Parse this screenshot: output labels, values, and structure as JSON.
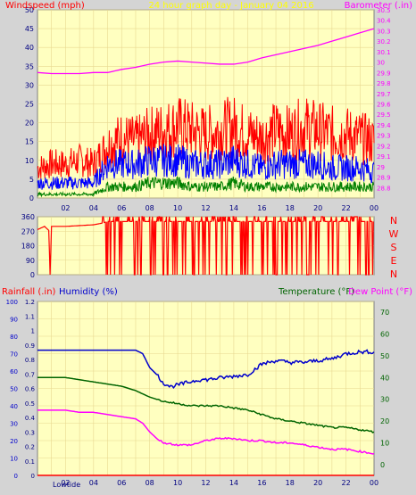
{
  "colors": {
    "background": "#d4d4d4",
    "plot_bg": "#ffffc0",
    "grid": "#e8d890",
    "windspeed": "#ff0000",
    "wind_mid": "#0000ff",
    "wind_low": "#008000",
    "barometer": "#ff00ff",
    "rainfall": "#ff0000",
    "humidity": "#0000cc",
    "temperature": "#006400",
    "dewpoint": "#ff00ff",
    "title": "#ffff00",
    "axis_text": "#000080"
  },
  "chart_data": [
    {
      "type": "line",
      "title": "24 hour graph day - January 04 2016",
      "left_label": "Windspeed (mph)",
      "right_label": "Barometer (.in)",
      "ylim_left": [
        0,
        50
      ],
      "ylim_right": [
        28.7,
        30.5
      ],
      "yticks_left": [
        "0",
        "5",
        "10",
        "15",
        "20",
        "25",
        "30",
        "35",
        "40",
        "45",
        "50"
      ],
      "yticks_right": [
        "28.8",
        "28.9",
        "29",
        "29.1",
        "29.2",
        "29.3",
        "29.4",
        "29.5",
        "29.6",
        "29.7",
        "29.8",
        "29.9",
        "30",
        "30.1",
        "30.2",
        "30.3",
        "30.4",
        "30.5"
      ],
      "xticks": [
        "02",
        "04",
        "06",
        "08",
        "10",
        "12",
        "14",
        "16",
        "18",
        "20",
        "22",
        "00"
      ],
      "grid": true,
      "series": [
        {
          "name": "Barometer (.in)",
          "axis": "right",
          "x": [
            0,
            1,
            2,
            3,
            4,
            5,
            6,
            7,
            8,
            9,
            10,
            11,
            12,
            13,
            14,
            15,
            16,
            17,
            18,
            19,
            20,
            21,
            22,
            23,
            24
          ],
          "values": [
            29.9,
            29.89,
            29.89,
            29.89,
            29.9,
            29.9,
            29.93,
            29.95,
            29.98,
            30.0,
            30.01,
            30.0,
            29.99,
            29.98,
            29.98,
            30.0,
            30.04,
            30.07,
            30.1,
            30.13,
            30.16,
            30.2,
            30.24,
            30.28,
            30.32
          ]
        },
        {
          "name": "Wind gust",
          "axis": "left",
          "x": [
            0,
            1,
            2,
            3,
            4,
            5,
            6,
            7,
            8,
            9,
            10,
            11,
            12,
            13,
            14,
            15,
            16,
            17,
            18,
            19,
            20,
            21,
            22,
            23,
            24
          ],
          "values": [
            8,
            9,
            9,
            10,
            9,
            14,
            16,
            15,
            17,
            18,
            19,
            18,
            17,
            18,
            19,
            17,
            16,
            18,
            17,
            19,
            18,
            17,
            17,
            16,
            15
          ]
        },
        {
          "name": "Wind average",
          "axis": "left",
          "x": [
            0,
            1,
            2,
            3,
            4,
            5,
            6,
            7,
            8,
            9,
            10,
            11,
            12,
            13,
            14,
            15,
            16,
            17,
            18,
            19,
            20,
            21,
            22,
            23,
            24
          ],
          "values": [
            4,
            4,
            4,
            4,
            4,
            9,
            9,
            9,
            10,
            10,
            10,
            9,
            9,
            9,
            10,
            9,
            8,
            9,
            9,
            9,
            9,
            8,
            8,
            8,
            7
          ]
        },
        {
          "name": "Wind low",
          "axis": "left",
          "x": [
            0,
            1,
            2,
            3,
            4,
            5,
            6,
            7,
            8,
            9,
            10,
            11,
            12,
            13,
            14,
            15,
            16,
            17,
            18,
            19,
            20,
            21,
            22,
            23,
            24
          ],
          "values": [
            1,
            1,
            1,
            1,
            1,
            3,
            3,
            3,
            4,
            4,
            4,
            3,
            3,
            3,
            4,
            3,
            3,
            3,
            3,
            3,
            3,
            3,
            3,
            3,
            3
          ]
        }
      ]
    },
    {
      "type": "line",
      "title": "",
      "right_label": "N W S E N",
      "right_letters": [
        "N",
        "W",
        "S",
        "E",
        "N"
      ],
      "ylim": [
        0,
        360
      ],
      "yticks": [
        "0",
        "90",
        "180",
        "270",
        "360"
      ],
      "grid": true,
      "series": [
        {
          "name": "Wind direction",
          "x": [
            0,
            0.5,
            0.8,
            0.9,
            1,
            2,
            3,
            4,
            4.6,
            5,
            6,
            7,
            8,
            9,
            10,
            11,
            12,
            13,
            14,
            15,
            16,
            17,
            18,
            19,
            20,
            21,
            22,
            23,
            24
          ],
          "values": [
            280,
            300,
            275,
            0,
            300,
            300,
            305,
            310,
            320,
            330,
            330,
            330,
            330,
            330,
            330,
            330,
            330,
            330,
            330,
            330,
            330,
            330,
            330,
            330,
            330,
            330,
            330,
            330,
            330
          ]
        }
      ]
    },
    {
      "type": "line",
      "title": "",
      "labels": [
        "Rainfall (.in)",
        "Humidity (%)",
        "Temperature (°F)",
        "Dew Point (°F)"
      ],
      "ylim_rain": [
        0,
        1.2
      ],
      "ylim_humidity": [
        0,
        100
      ],
      "ylim_temp": [
        -5,
        75
      ],
      "yticks_rain": [
        "0",
        "0.1",
        "0.2",
        "0.3",
        "0.4",
        "0.5",
        "0.6",
        "0.7",
        "0.8",
        "0.9",
        "1",
        "1.1",
        "1.2"
      ],
      "yticks_humidity": [
        "0",
        "10",
        "20",
        "30",
        "40",
        "50",
        "60",
        "70",
        "80",
        "90",
        "100"
      ],
      "yticks_temp": [
        "0",
        "10",
        "20",
        "30",
        "40",
        "50",
        "60",
        "70"
      ],
      "xticks": [
        "02",
        "04",
        "06",
        "08",
        "10",
        "12",
        "14",
        "16",
        "18",
        "20",
        "22",
        "00"
      ],
      "lowtide_label": "Lowtide",
      "grid": true,
      "series": [
        {
          "name": "Humidity (%)",
          "axis": "humidity",
          "x": [
            0,
            1,
            2,
            3,
            4,
            5,
            6,
            7,
            7.5,
            8,
            8.5,
            9,
            9.5,
            10,
            10.5,
            11,
            11.5,
            12,
            13,
            14,
            15,
            16,
            17,
            18,
            19,
            20,
            21,
            22,
            23,
            24
          ],
          "values": [
            72,
            72,
            72,
            72,
            72,
            72,
            72,
            72,
            70,
            62,
            58,
            53,
            51,
            52,
            53,
            54,
            55,
            55,
            56,
            57,
            58,
            64,
            66,
            65,
            65,
            66,
            67,
            70,
            71,
            71
          ]
        },
        {
          "name": "Temperature (°F)",
          "axis": "temp",
          "x": [
            0,
            1,
            2,
            3,
            4,
            5,
            6,
            7,
            8,
            9,
            10,
            11,
            12,
            13,
            14,
            15,
            16,
            17,
            18,
            19,
            20,
            21,
            22,
            23,
            24
          ],
          "values": [
            40,
            40,
            40,
            39,
            38,
            37,
            36,
            34,
            31,
            29,
            28,
            27,
            27,
            27,
            26,
            25,
            23,
            21,
            20,
            19,
            18,
            17,
            17,
            16,
            15
          ]
        },
        {
          "name": "Dew Point (°F)",
          "axis": "temp",
          "x": [
            0,
            1,
            2,
            3,
            4,
            5,
            6,
            7,
            7.5,
            8,
            8.5,
            9,
            10,
            11,
            12,
            13,
            14,
            15,
            16,
            17,
            18,
            19,
            20,
            21,
            22,
            23,
            24
          ],
          "values": [
            25,
            25,
            25,
            24,
            24,
            23,
            22,
            21,
            19,
            15,
            12,
            10,
            9,
            9,
            11,
            12,
            12,
            11,
            11,
            10,
            10,
            9,
            8,
            7,
            7,
            6,
            5
          ]
        },
        {
          "name": "Rainfall (.in)",
          "axis": "rain",
          "x": [
            0,
            24
          ],
          "values": [
            0,
            0
          ]
        }
      ]
    }
  ]
}
